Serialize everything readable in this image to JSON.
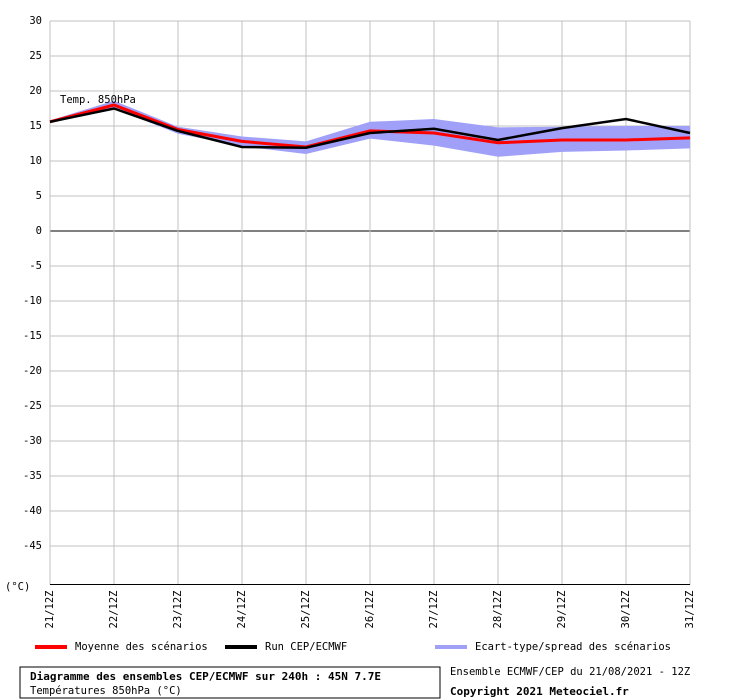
{
  "chart_data": {
    "type": "line",
    "title": "Diagramme des ensembles CEP/ECMWF sur 240h : 45N 7.7E",
    "subtitle": "Températures 850hPa (°C)",
    "source": "Ensemble ECMWF/CEP du 21/08/2021 - 12Z",
    "copyright": "Copyright 2021 Meteociel.fr",
    "annotation": "Temp. 850hPa",
    "y_label": "(°C)",
    "categories": [
      "21/12Z",
      "22/12Z",
      "23/12Z",
      "24/12Z",
      "25/12Z",
      "26/12Z",
      "27/12Z",
      "28/12Z",
      "29/12Z",
      "30/12Z",
      "31/12Z"
    ],
    "series": [
      {
        "name": "Moyenne des scénarios",
        "color": "#ff0000",
        "values": [
          15.6,
          18.0,
          14.5,
          12.8,
          12.0,
          14.3,
          14.0,
          12.6,
          13.0,
          13.0,
          13.3
        ]
      },
      {
        "name": "Run CEP/ECMWF",
        "color": "#000000",
        "values": [
          15.6,
          17.5,
          14.3,
          12.0,
          11.9,
          14.0,
          14.6,
          13.0,
          14.7,
          16.0,
          14.0
        ]
      },
      {
        "name": "Ecart-type/spread des scénarios",
        "color": "#a0a0f8",
        "upper": [
          15.8,
          18.6,
          14.9,
          13.5,
          12.8,
          15.6,
          16.0,
          14.8,
          14.9,
          15.0,
          15.0
        ],
        "lower": [
          15.4,
          17.5,
          13.9,
          12.1,
          11.0,
          13.2,
          12.2,
          10.6,
          11.3,
          11.5,
          11.8
        ]
      }
    ],
    "ylim": [
      -50.5,
      30
    ],
    "yticks": [
      30,
      25,
      20,
      15,
      10,
      5,
      0,
      -5,
      -10,
      -15,
      -20,
      -25,
      -30,
      -35,
      -40,
      -45
    ],
    "grid": true
  }
}
